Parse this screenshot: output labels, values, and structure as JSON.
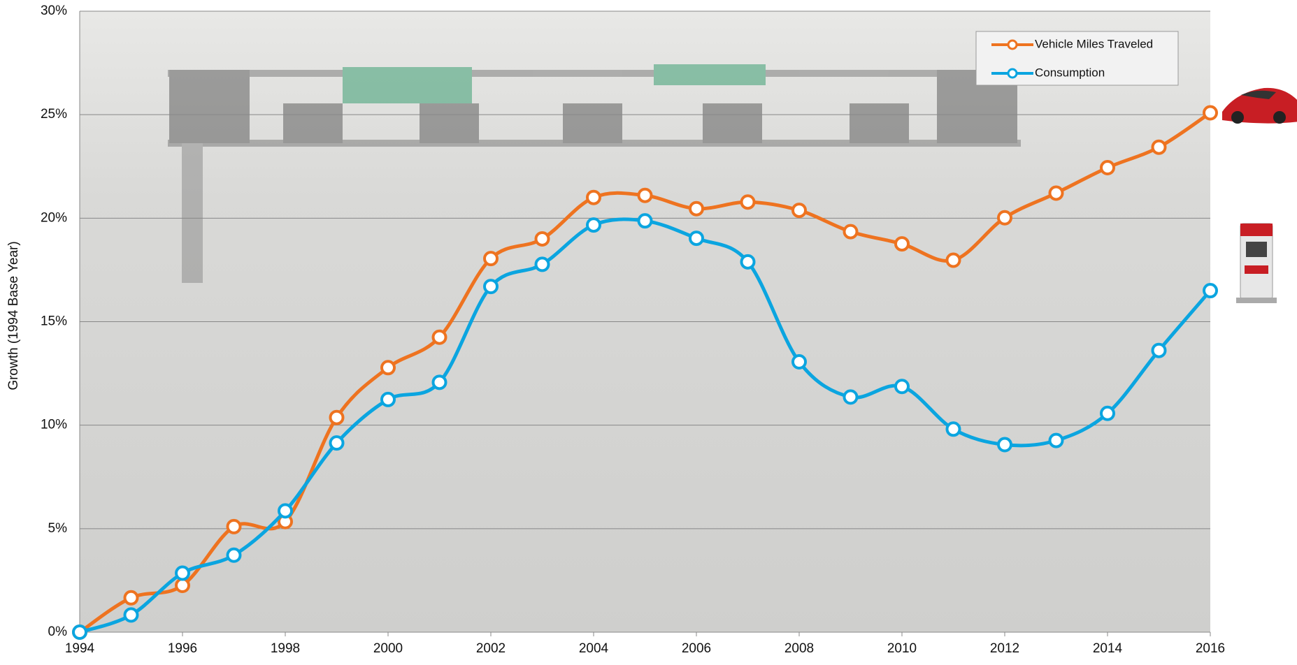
{
  "chart_data": {
    "type": "line",
    "y_label": "Growth (1994 Base Year)",
    "x": [
      1994,
      1995,
      1996,
      1997,
      1998,
      1999,
      2000,
      2001,
      2002,
      2003,
      2004,
      2005,
      2006,
      2007,
      2008,
      2009,
      2010,
      2011,
      2012,
      2013,
      2014,
      2015,
      2016
    ],
    "series": [
      {
        "name": "Vehicle Miles Traveled",
        "color": "#ee7320",
        "values": [
          0,
          1.66,
          2.26,
          5.1,
          5.34,
          10.37,
          12.78,
          14.25,
          18.05,
          19.0,
          21.0,
          21.1,
          20.46,
          20.78,
          20.38,
          19.35,
          18.76,
          17.97,
          20.02,
          21.21,
          22.44,
          23.43,
          25.09
        ]
      },
      {
        "name": "Consumption",
        "color": "#0ba5e0",
        "values": [
          0,
          0.83,
          2.85,
          3.72,
          5.86,
          9.14,
          11.24,
          12.07,
          16.7,
          17.77,
          19.67,
          19.87,
          19.03,
          17.89,
          13.06,
          11.36,
          11.87,
          9.81,
          9.06,
          9.26,
          10.57,
          13.61,
          16.5
        ]
      }
    ],
    "xlim": [
      1994,
      2016
    ],
    "xticks": [
      1994,
      1996,
      1998,
      2000,
      2002,
      2004,
      2006,
      2008,
      2010,
      2012,
      2014,
      2016
    ],
    "ylim": [
      0,
      30
    ],
    "yticks": [
      {
        "value": 0,
        "label": "0%"
      },
      {
        "value": 5,
        "label": "5%"
      },
      {
        "value": 10,
        "label": "10%"
      },
      {
        "value": 15,
        "label": "15%"
      },
      {
        "value": 20,
        "label": "20%"
      },
      {
        "value": 25,
        "label": "25%"
      },
      {
        "value": 30,
        "label": "30%"
      }
    ],
    "grid": true,
    "legend": "upper right"
  }
}
